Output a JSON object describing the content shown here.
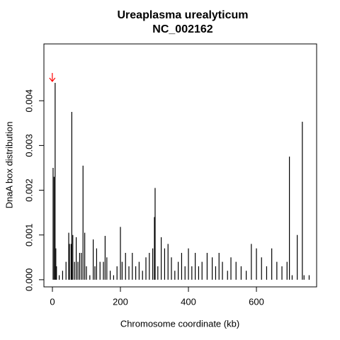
{
  "chart_data": {
    "type": "bar",
    "title": "Ureaplasma urealyticum",
    "subtitle": "NC_002162",
    "x_label": "Chromosome coordinate (kb)",
    "y_label": "DnaA box distribution",
    "color": "#000000",
    "annotation_color": "#ff0000",
    "xlim": [
      -25,
      777
    ],
    "ylim": [
      -0.00016,
      0.00527
    ],
    "xticks": [
      0,
      200,
      400,
      600
    ],
    "yticks": [
      {
        "value": 0,
        "label": "0.000"
      },
      {
        "value": 0.001,
        "label": "0.001"
      },
      {
        "value": 0.002,
        "label": "0.002"
      },
      {
        "value": 0.003,
        "label": "0.003"
      },
      {
        "value": 0.004,
        "label": "0.004"
      }
    ],
    "x": [
      2,
      5,
      8,
      10,
      12,
      20,
      30,
      40,
      48,
      50,
      55,
      57,
      60,
      65,
      70,
      75,
      80,
      85,
      90,
      95,
      100,
      110,
      120,
      125,
      130,
      140,
      150,
      155,
      160,
      170,
      180,
      190,
      200,
      205,
      215,
      225,
      235,
      245,
      255,
      265,
      275,
      285,
      295,
      300,
      302,
      310,
      320,
      330,
      340,
      350,
      360,
      370,
      380,
      390,
      400,
      410,
      420,
      430,
      440,
      455,
      470,
      480,
      490,
      500,
      515,
      525,
      540,
      555,
      570,
      585,
      600,
      615,
      630,
      645,
      660,
      675,
      690,
      697,
      705,
      720,
      735,
      740,
      755
    ],
    "values": [
      0.0025,
      0.0023,
      0.0044,
      0.0007,
      0.0003,
      0.0001,
      0.0002,
      0.0004,
      0.00105,
      0.0008,
      0.0008,
      0.00375,
      0.001,
      0.0004,
      0.00095,
      0.0004,
      0.0006,
      0.0006,
      0.00255,
      0.00105,
      0.0003,
      0.0001,
      0.0009,
      0.0003,
      0.0007,
      0.0004,
      0.0004,
      0.00098,
      0.0005,
      0.0002,
      0.0001,
      0.0003,
      0.00118,
      0.0004,
      0.0006,
      0.0003,
      0.0006,
      0.0003,
      0.0004,
      0.0002,
      0.0005,
      0.0006,
      0.0007,
      0.0014,
      0.00205,
      0.0003,
      0.00095,
      0.0007,
      0.0008,
      0.0005,
      0.0002,
      0.0004,
      0.0006,
      0.0003,
      0.0007,
      0.0003,
      0.0006,
      0.0003,
      0.0004,
      0.0006,
      0.0005,
      0.0003,
      0.0006,
      0.0004,
      0.0002,
      0.0005,
      0.0004,
      0.0003,
      0.0002,
      0.0008,
      0.0007,
      0.0005,
      0.0003,
      0.0007,
      0.0004,
      0.0003,
      0.0004,
      0.00275,
      0.0001,
      0.001,
      0.00353,
      0.0001,
      0.0001
    ]
  }
}
